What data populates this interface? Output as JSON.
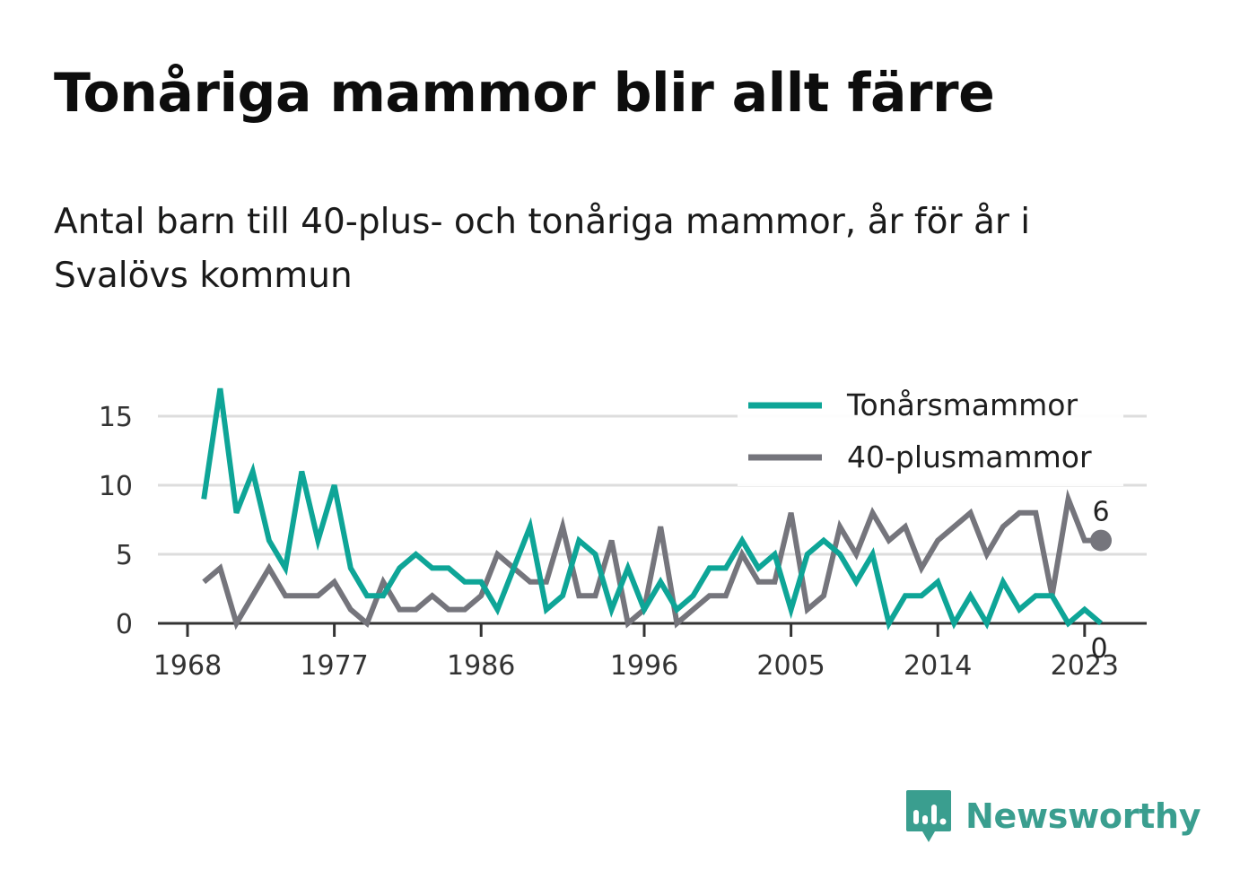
{
  "title": "Tonåriga mammor blir allt färre",
  "subtitle": "Antal barn till 40-plus- och tonåriga mammor, år för år i Svalövs kommun",
  "brand": {
    "name": "Newsworthy",
    "icon": "newsworthy-logo-icon",
    "color": "#3a9e8f"
  },
  "chart_data": {
    "type": "line",
    "x": [
      1969,
      1970,
      1971,
      1972,
      1973,
      1974,
      1975,
      1976,
      1977,
      1978,
      1979,
      1980,
      1981,
      1982,
      1983,
      1984,
      1985,
      1986,
      1987,
      1988,
      1989,
      1990,
      1991,
      1992,
      1993,
      1994,
      1995,
      1996,
      1997,
      1998,
      1999,
      2000,
      2001,
      2002,
      2003,
      2004,
      2005,
      2006,
      2007,
      2008,
      2009,
      2010,
      2011,
      2012,
      2013,
      2014,
      2015,
      2016,
      2017,
      2018,
      2019,
      2020,
      2021,
      2022,
      2023,
      2024
    ],
    "series": [
      {
        "name": "Tonårsmammor",
        "color": "#0ea597",
        "values": [
          9,
          17,
          8,
          11,
          6,
          4,
          11,
          6,
          10,
          4,
          2,
          2,
          4,
          5,
          4,
          4,
          3,
          3,
          1,
          4,
          7,
          1,
          2,
          6,
          5,
          1,
          4,
          1,
          3,
          1,
          2,
          4,
          4,
          6,
          4,
          5,
          1,
          5,
          6,
          5,
          3,
          5,
          0,
          2,
          2,
          3,
          0,
          2,
          0,
          3,
          1,
          2,
          2,
          0,
          1,
          0
        ]
      },
      {
        "name": "40-plusmammor",
        "color": "#75757c",
        "values": [
          3,
          4,
          0,
          2,
          4,
          2,
          2,
          2,
          3,
          1,
          0,
          3,
          1,
          1,
          2,
          1,
          1,
          2,
          5,
          4,
          3,
          3,
          7,
          2,
          2,
          6,
          0,
          1,
          7,
          0,
          1,
          2,
          2,
          5,
          3,
          3,
          8,
          1,
          2,
          7,
          5,
          8,
          6,
          7,
          4,
          6,
          7,
          8,
          5,
          7,
          8,
          8,
          2,
          9,
          6,
          6
        ]
      }
    ],
    "x_ticks": [
      1968,
      1977,
      1986,
      1996,
      2005,
      2014,
      2023
    ],
    "x_tick_labels": [
      "1968",
      "1977",
      "1986",
      "1996",
      "2005",
      "2014",
      "2023"
    ],
    "y_ticks": [
      0,
      5,
      10,
      15
    ],
    "y_tick_labels": [
      "0",
      "5",
      "10",
      "15"
    ],
    "ylim": [
      0,
      17
    ],
    "grid": "horizontal",
    "legend": "top-right",
    "end_labels": [
      {
        "series": "40-plusmammor",
        "text": "6"
      },
      {
        "series": "Tonårsmammor",
        "text": "0"
      }
    ]
  }
}
